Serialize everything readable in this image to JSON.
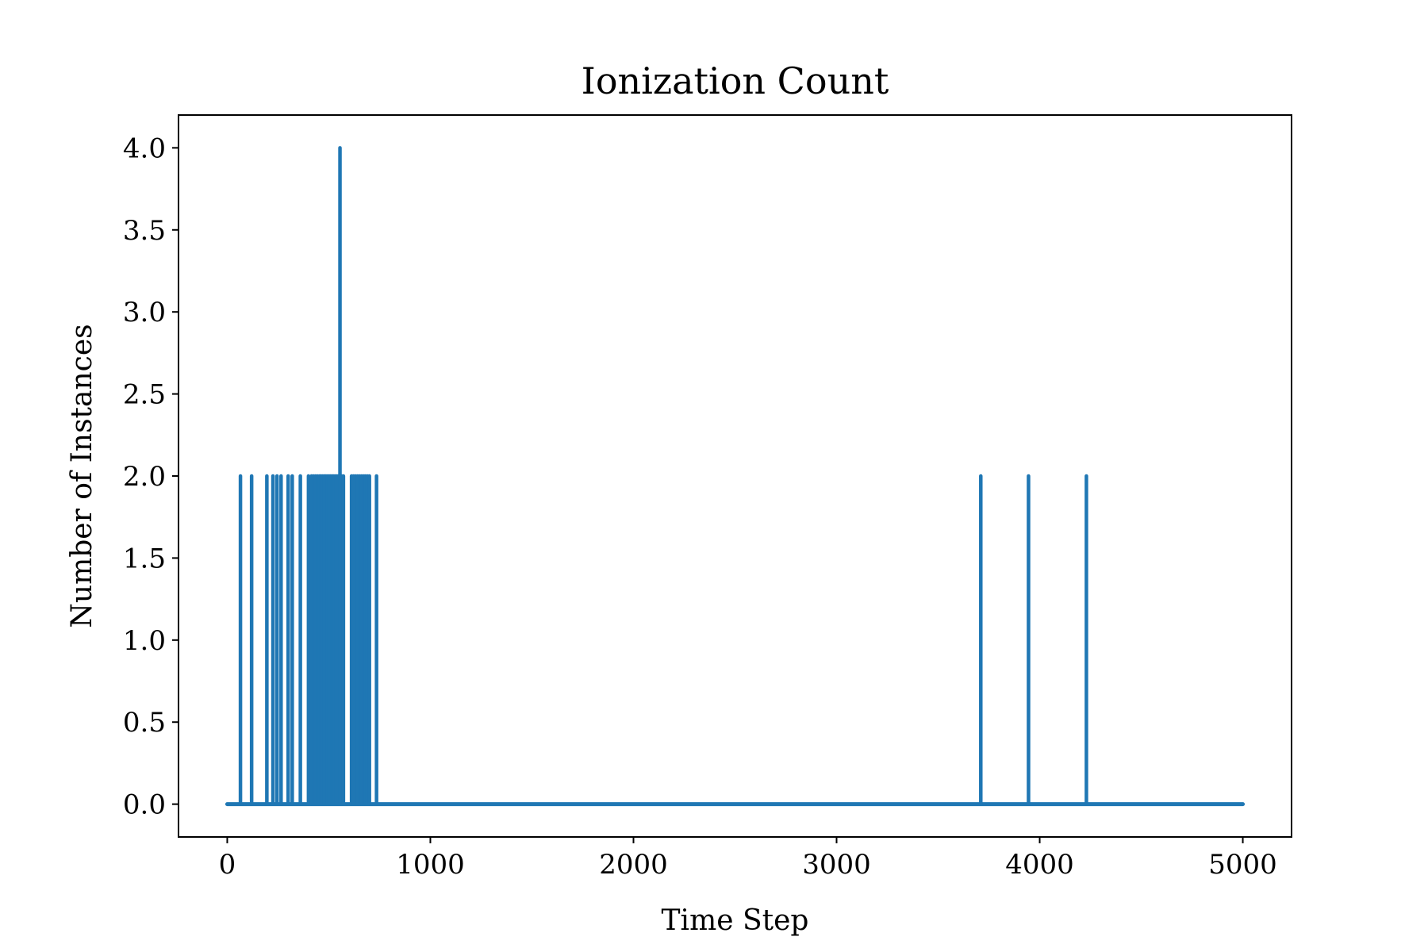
{
  "chart_data": {
    "type": "line",
    "title": "Ionization Count",
    "xlabel": "Time Step",
    "ylabel": "Number of Instances",
    "xlim": [
      -240,
      5240
    ],
    "ylim": [
      -0.2,
      4.2
    ],
    "xticks": [
      0,
      1000,
      2000,
      3000,
      4000,
      5000
    ],
    "xtick_labels": [
      "0",
      "1000",
      "2000",
      "3000",
      "4000",
      "5000"
    ],
    "yticks": [
      0.0,
      0.5,
      1.0,
      1.5,
      2.0,
      2.5,
      3.0,
      3.5,
      4.0
    ],
    "ytick_labels": [
      "0.0",
      "0.5",
      "1.0",
      "1.5",
      "2.0",
      "2.5",
      "3.0",
      "3.5",
      "4.0"
    ],
    "grid": false,
    "color": "#1f77b4",
    "baseline": {
      "x_start": 0,
      "x_end": 5000,
      "y": 0
    },
    "series": [
      {
        "spikes": [
          {
            "x": 65,
            "y": 2
          },
          {
            "x": 120,
            "y": 2
          },
          {
            "x": 195,
            "y": 2
          },
          {
            "x": 225,
            "y": 2
          },
          {
            "x": 245,
            "y": 2
          },
          {
            "x": 265,
            "y": 2
          },
          {
            "x": 300,
            "y": 2
          },
          {
            "x": 320,
            "y": 2
          },
          {
            "x": 360,
            "y": 2
          },
          {
            "x": 400,
            "y": 2
          },
          {
            "x": 415,
            "y": 2
          },
          {
            "x": 425,
            "y": 2
          },
          {
            "x": 435,
            "y": 2
          },
          {
            "x": 445,
            "y": 2
          },
          {
            "x": 455,
            "y": 2
          },
          {
            "x": 462,
            "y": 2
          },
          {
            "x": 470,
            "y": 2
          },
          {
            "x": 478,
            "y": 2
          },
          {
            "x": 485,
            "y": 2
          },
          {
            "x": 492,
            "y": 2
          },
          {
            "x": 500,
            "y": 2
          },
          {
            "x": 507,
            "y": 2
          },
          {
            "x": 515,
            "y": 2
          },
          {
            "x": 522,
            "y": 2
          },
          {
            "x": 530,
            "y": 2
          },
          {
            "x": 538,
            "y": 2
          },
          {
            "x": 546,
            "y": 2
          },
          {
            "x": 555,
            "y": 4
          },
          {
            "x": 563,
            "y": 2
          },
          {
            "x": 572,
            "y": 2
          },
          {
            "x": 612,
            "y": 2
          },
          {
            "x": 622,
            "y": 2
          },
          {
            "x": 632,
            "y": 2
          },
          {
            "x": 642,
            "y": 2
          },
          {
            "x": 652,
            "y": 2
          },
          {
            "x": 662,
            "y": 2
          },
          {
            "x": 672,
            "y": 2
          },
          {
            "x": 680,
            "y": 2
          },
          {
            "x": 690,
            "y": 2
          },
          {
            "x": 700,
            "y": 2
          },
          {
            "x": 735,
            "y": 2
          },
          {
            "x": 3710,
            "y": 2
          },
          {
            "x": 3945,
            "y": 2
          },
          {
            "x": 4230,
            "y": 2
          }
        ]
      }
    ]
  }
}
